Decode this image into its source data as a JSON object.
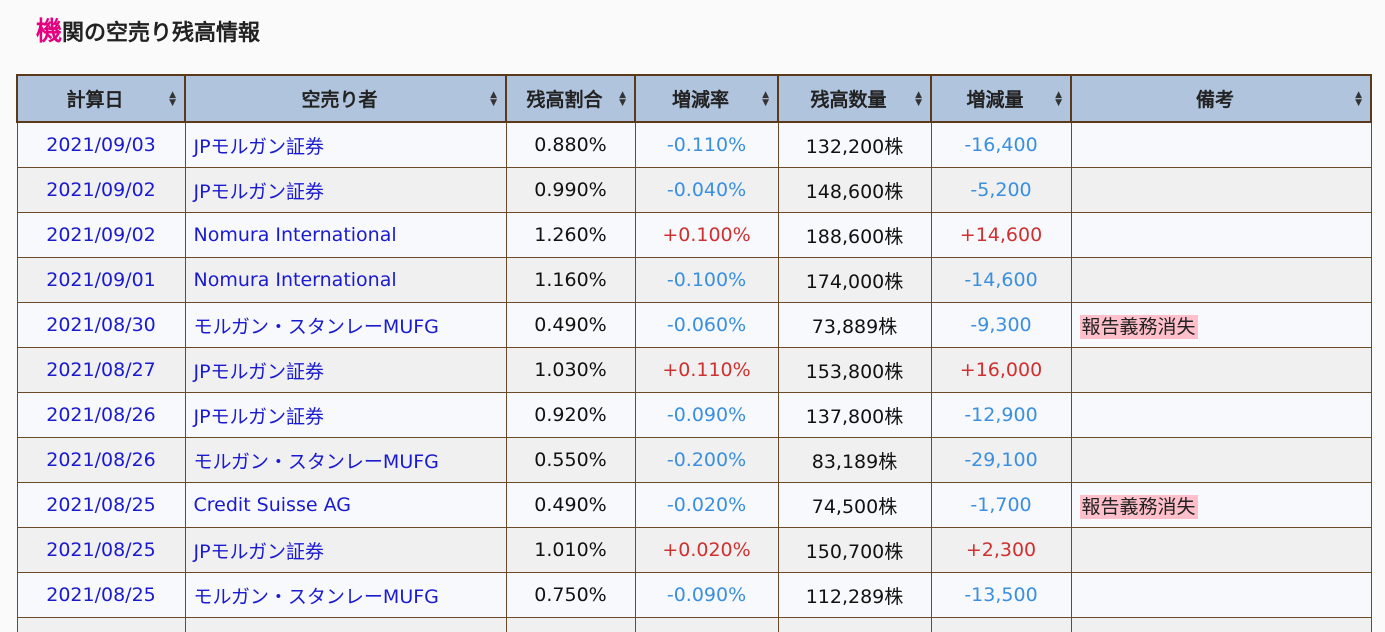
{
  "title": {
    "accent": "機",
    "rest": "関の空売り残高情報"
  },
  "headers": [
    "計算日",
    "空売り者",
    "残高割合",
    "増減率",
    "残高数量",
    "増減量",
    "備考"
  ],
  "sort_glyph": {
    "up": "▲",
    "down": "▼"
  },
  "rows": [
    {
      "date": "2021/09/03",
      "seller": "JPモルガン証券",
      "ratio": "0.880%",
      "rate": "-0.110%",
      "qty": "132,200株",
      "diff": "-16,400",
      "note": "",
      "sign": "neg"
    },
    {
      "date": "2021/09/02",
      "seller": "JPモルガン証券",
      "ratio": "0.990%",
      "rate": "-0.040%",
      "qty": "148,600株",
      "diff": "-5,200",
      "note": "",
      "sign": "neg"
    },
    {
      "date": "2021/09/02",
      "seller": "Nomura International",
      "ratio": "1.260%",
      "rate": "+0.100%",
      "qty": "188,600株",
      "diff": "+14,600",
      "note": "",
      "sign": "pos"
    },
    {
      "date": "2021/09/01",
      "seller": "Nomura International",
      "ratio": "1.160%",
      "rate": "-0.100%",
      "qty": "174,000株",
      "diff": "-14,600",
      "note": "",
      "sign": "neg"
    },
    {
      "date": "2021/08/30",
      "seller": "モルガン・スタンレーMUFG",
      "ratio": "0.490%",
      "rate": "-0.060%",
      "qty": "73,889株",
      "diff": "-9,300",
      "note": "報告義務消失",
      "sign": "neg"
    },
    {
      "date": "2021/08/27",
      "seller": "JPモルガン証券",
      "ratio": "1.030%",
      "rate": "+0.110%",
      "qty": "153,800株",
      "diff": "+16,000",
      "note": "",
      "sign": "pos"
    },
    {
      "date": "2021/08/26",
      "seller": "JPモルガン証券",
      "ratio": "0.920%",
      "rate": "-0.090%",
      "qty": "137,800株",
      "diff": "-12,900",
      "note": "",
      "sign": "neg"
    },
    {
      "date": "2021/08/26",
      "seller": "モルガン・スタンレーMUFG",
      "ratio": "0.550%",
      "rate": "-0.200%",
      "qty": "83,189株",
      "diff": "-29,100",
      "note": "",
      "sign": "neg"
    },
    {
      "date": "2021/08/25",
      "seller": "Credit Suisse AG",
      "ratio": "0.490%",
      "rate": "-0.020%",
      "qty": "74,500株",
      "diff": "-1,700",
      "note": "報告義務消失",
      "sign": "neg"
    },
    {
      "date": "2021/08/25",
      "seller": "JPモルガン証券",
      "ratio": "1.010%",
      "rate": "+0.020%",
      "qty": "150,700株",
      "diff": "+2,300",
      "note": "",
      "sign": "pos"
    },
    {
      "date": "2021/08/25",
      "seller": "モルガン・スタンレーMUFG",
      "ratio": "0.750%",
      "rate": "-0.090%",
      "qty": "112,289株",
      "diff": "-13,500",
      "note": "",
      "sign": "neg"
    }
  ],
  "colors": {
    "header_bg": "#b0c4de",
    "link": "#1a1ad0",
    "negative": "#3a8fe0",
    "positive": "#d03030",
    "badge": "#ffc0cb",
    "accent": "#e4007f"
  }
}
